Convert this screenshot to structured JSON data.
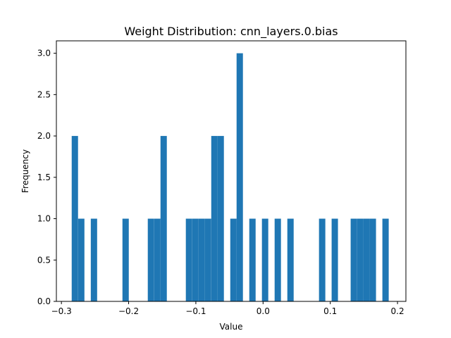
{
  "chart_data": {
    "type": "bar",
    "subtype": "histogram",
    "title": "Weight Distribution: cnn_layers.0.bias",
    "xlabel": "Value",
    "ylabel": "Frequency",
    "xlim": [
      -0.3075,
      0.2125
    ],
    "ylim": [
      0,
      3.15
    ],
    "bin_width": 0.00943,
    "bins": [
      {
        "x": -0.2847,
        "count": 2
      },
      {
        "x": -0.2752,
        "count": 1
      },
      {
        "x": -0.2563,
        "count": 1
      },
      {
        "x": -0.2092,
        "count": 1
      },
      {
        "x": -0.1715,
        "count": 1
      },
      {
        "x": -0.162,
        "count": 1
      },
      {
        "x": -0.1526,
        "count": 2
      },
      {
        "x": -0.1149,
        "count": 1
      },
      {
        "x": -0.1054,
        "count": 1
      },
      {
        "x": -0.096,
        "count": 1
      },
      {
        "x": -0.0866,
        "count": 1
      },
      {
        "x": -0.0771,
        "count": 2
      },
      {
        "x": -0.0677,
        "count": 2
      },
      {
        "x": -0.0488,
        "count": 1
      },
      {
        "x": -0.0394,
        "count": 3
      },
      {
        "x": -0.0205,
        "count": 1
      },
      {
        "x": -0.0017,
        "count": 1
      },
      {
        "x": 0.0172,
        "count": 1
      },
      {
        "x": 0.0361,
        "count": 1
      },
      {
        "x": 0.0832,
        "count": 1
      },
      {
        "x": 0.102,
        "count": 1
      },
      {
        "x": 0.1303,
        "count": 1
      },
      {
        "x": 0.1398,
        "count": 1
      },
      {
        "x": 0.1492,
        "count": 1
      },
      {
        "x": 0.1586,
        "count": 1
      },
      {
        "x": 0.1775,
        "count": 1
      }
    ],
    "xticks": [
      {
        "value": -0.3,
        "label": "−0.3"
      },
      {
        "value": -0.2,
        "label": "−0.2"
      },
      {
        "value": -0.1,
        "label": "−0.1"
      },
      {
        "value": 0.0,
        "label": "0.0"
      },
      {
        "value": 0.1,
        "label": "0.1"
      },
      {
        "value": 0.2,
        "label": "0.2"
      }
    ],
    "yticks": [
      {
        "value": 0.0,
        "label": "0.0"
      },
      {
        "value": 0.5,
        "label": "0.5"
      },
      {
        "value": 1.0,
        "label": "1.0"
      },
      {
        "value": 1.5,
        "label": "1.5"
      },
      {
        "value": 2.0,
        "label": "2.0"
      },
      {
        "value": 2.5,
        "label": "2.5"
      },
      {
        "value": 3.0,
        "label": "3.0"
      }
    ],
    "grid": false,
    "legend": "none",
    "bar_color": "#1f77b4"
  }
}
